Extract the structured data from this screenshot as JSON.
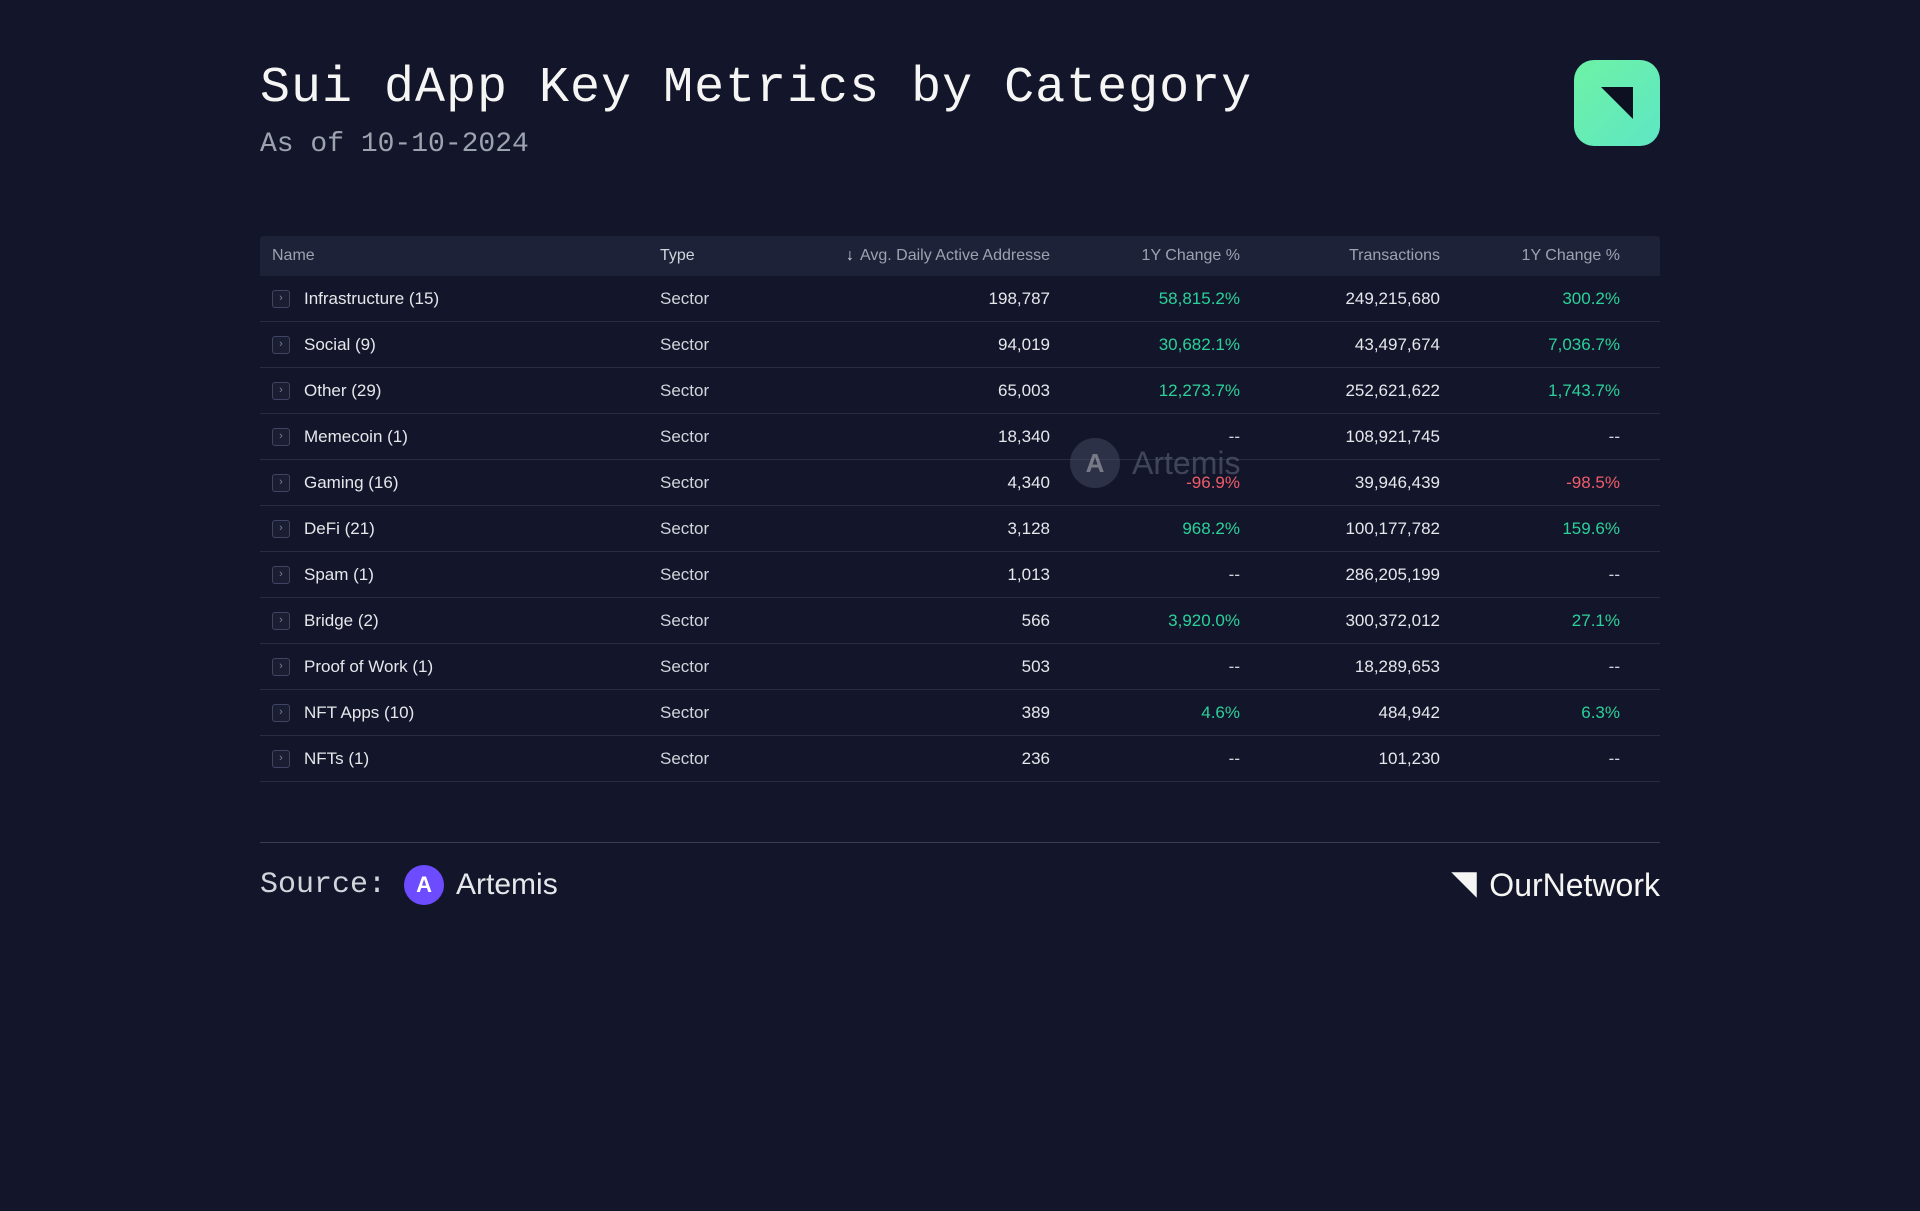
{
  "header": {
    "title": "Sui dApp Key Metrics by Category",
    "subtitle": "As of 10-10-2024"
  },
  "table": {
    "columns": {
      "name": "Name",
      "type": "Type",
      "daa": "Avg. Daily Active Addresse",
      "change1": "1Y Change %",
      "tx": "Transactions",
      "change2": "1Y Change %"
    },
    "sort_indicator": "↓",
    "rows": [
      {
        "name": "Infrastructure (15)",
        "type": "Sector",
        "daa": "198,787",
        "chg1": "58,815.2%",
        "c1": "pos",
        "tx": "249,215,680",
        "chg2": "300.2%",
        "c2": "pos"
      },
      {
        "name": "Social (9)",
        "type": "Sector",
        "daa": "94,019",
        "chg1": "30,682.1%",
        "c1": "pos",
        "tx": "43,497,674",
        "chg2": "7,036.7%",
        "c2": "pos"
      },
      {
        "name": "Other (29)",
        "type": "Sector",
        "daa": "65,003",
        "chg1": "12,273.7%",
        "c1": "pos",
        "tx": "252,621,622",
        "chg2": "1,743.7%",
        "c2": "pos"
      },
      {
        "name": "Memecoin (1)",
        "type": "Sector",
        "daa": "18,340",
        "chg1": "--",
        "c1": "nul",
        "tx": "108,921,745",
        "chg2": "--",
        "c2": "nul"
      },
      {
        "name": "Gaming (16)",
        "type": "Sector",
        "daa": "4,340",
        "chg1": "-96.9%",
        "c1": "neg",
        "tx": "39,946,439",
        "chg2": "-98.5%",
        "c2": "neg"
      },
      {
        "name": "DeFi (21)",
        "type": "Sector",
        "daa": "3,128",
        "chg1": "968.2%",
        "c1": "pos",
        "tx": "100,177,782",
        "chg2": "159.6%",
        "c2": "pos"
      },
      {
        "name": "Spam (1)",
        "type": "Sector",
        "daa": "1,013",
        "chg1": "--",
        "c1": "nul",
        "tx": "286,205,199",
        "chg2": "--",
        "c2": "nul"
      },
      {
        "name": "Bridge (2)",
        "type": "Sector",
        "daa": "566",
        "chg1": "3,920.0%",
        "c1": "pos",
        "tx": "300,372,012",
        "chg2": "27.1%",
        "c2": "pos"
      },
      {
        "name": "Proof of Work (1)",
        "type": "Sector",
        "daa": "503",
        "chg1": "--",
        "c1": "nul",
        "tx": "18,289,653",
        "chg2": "--",
        "c2": "nul"
      },
      {
        "name": "NFT Apps (10)",
        "type": "Sector",
        "daa": "389",
        "chg1": "4.6%",
        "c1": "pos",
        "tx": "484,942",
        "chg2": "6.3%",
        "c2": "pos"
      },
      {
        "name": "NFTs (1)",
        "type": "Sector",
        "daa": "236",
        "chg1": "--",
        "c1": "nul",
        "tx": "101,230",
        "chg2": "--",
        "c2": "nul"
      }
    ]
  },
  "watermark": "Artemis",
  "footer": {
    "source_label": "Source:",
    "source_name": "Artemis",
    "brand": "OurNetwork"
  },
  "colors": {
    "bg": "#13162a",
    "row_border": "#282c42",
    "header_bg": "#1e2238",
    "pos": "#2bd19a",
    "neg": "#f05c6a",
    "text": "#e5e7eb",
    "muted": "#9ca3af",
    "logo_grad_a": "#6ef2a5",
    "logo_grad_b": "#5ee6c4",
    "artemis_bg": "#6d4bff"
  }
}
